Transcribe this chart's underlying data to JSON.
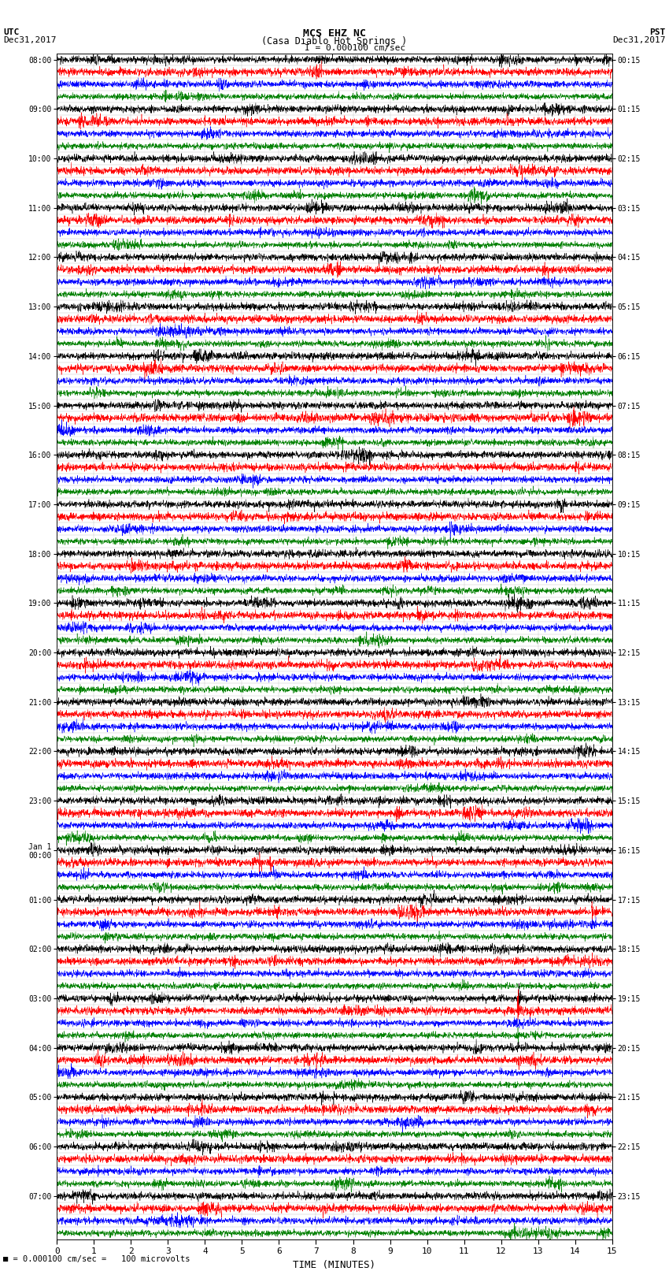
{
  "title_line1": "MCS EHZ NC",
  "title_line2": "(Casa Diablo Hot Springs )",
  "title_line3": "I = 0.000100 cm/sec",
  "left_header_line1": "UTC",
  "left_header_line2": "Dec31,2017",
  "right_header_line1": "PST",
  "right_header_line2": "Dec31,2017",
  "xlabel": "TIME (MINUTES)",
  "footer": "= 0.000100 cm/sec =   100 microvolts",
  "utc_times": [
    "08:00",
    "",
    "",
    "",
    "09:00",
    "",
    "",
    "",
    "10:00",
    "",
    "",
    "",
    "11:00",
    "",
    "",
    "",
    "12:00",
    "",
    "",
    "",
    "13:00",
    "",
    "",
    "",
    "14:00",
    "",
    "",
    "",
    "15:00",
    "",
    "",
    "",
    "16:00",
    "",
    "",
    "",
    "17:00",
    "",
    "",
    "",
    "18:00",
    "",
    "",
    "",
    "19:00",
    "",
    "",
    "",
    "20:00",
    "",
    "",
    "",
    "21:00",
    "",
    "",
    "",
    "22:00",
    "",
    "",
    "",
    "23:00",
    "",
    "",
    "",
    "Jan 1\n00:00",
    "",
    "",
    "",
    "01:00",
    "",
    "",
    "",
    "02:00",
    "",
    "",
    "",
    "03:00",
    "",
    "",
    "",
    "04:00",
    "",
    "",
    "",
    "05:00",
    "",
    "",
    "",
    "06:00",
    "",
    "",
    "",
    "07:00",
    "",
    "",
    ""
  ],
  "pst_times": [
    "00:15",
    "",
    "",
    "",
    "01:15",
    "",
    "",
    "",
    "02:15",
    "",
    "",
    "",
    "03:15",
    "",
    "",
    "",
    "04:15",
    "",
    "",
    "",
    "05:15",
    "",
    "",
    "",
    "06:15",
    "",
    "",
    "",
    "07:15",
    "",
    "",
    "",
    "08:15",
    "",
    "",
    "",
    "09:15",
    "",
    "",
    "",
    "10:15",
    "",
    "",
    "",
    "11:15",
    "",
    "",
    "",
    "12:15",
    "",
    "",
    "",
    "13:15",
    "",
    "",
    "",
    "14:15",
    "",
    "",
    "",
    "15:15",
    "",
    "",
    "",
    "16:15",
    "",
    "",
    "",
    "17:15",
    "",
    "",
    "",
    "18:15",
    "",
    "",
    "",
    "19:15",
    "",
    "",
    "",
    "20:15",
    "",
    "",
    "",
    "21:15",
    "",
    "",
    "",
    "22:15",
    "",
    "",
    "",
    "23:15",
    "",
    "",
    ""
  ],
  "n_rows": 96,
  "n_colors": 4,
  "colors": [
    "black",
    "red",
    "blue",
    "green"
  ],
  "bg_color": "white",
  "grid_color": "#888888",
  "xmin": 0,
  "xmax": 15,
  "xticks": [
    0,
    1,
    2,
    3,
    4,
    5,
    6,
    7,
    8,
    9,
    10,
    11,
    12,
    13,
    14,
    15
  ],
  "base_noise_amp": 0.12,
  "spike_amp": 0.25,
  "spike_prob": 0.005,
  "amplitude_scale": 0.42
}
